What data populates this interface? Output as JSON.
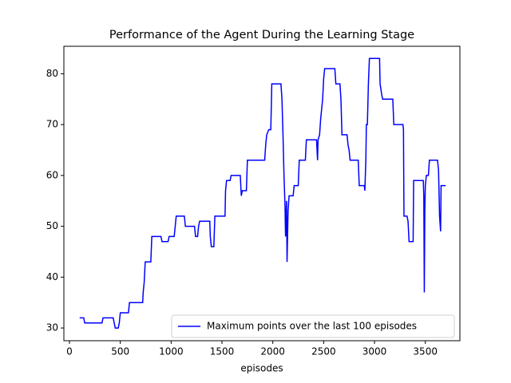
{
  "chart_data": {
    "type": "line",
    "title": "Performance of the Agent During the Learning Stage",
    "xlabel": "episodes",
    "x": [
      100,
      140,
      150,
      320,
      330,
      430,
      440,
      450,
      480,
      490,
      500,
      580,
      590,
      720,
      725,
      735,
      745,
      800,
      810,
      900,
      910,
      970,
      980,
      1030,
      1040,
      1050,
      1130,
      1140,
      1230,
      1240,
      1260,
      1270,
      1280,
      1380,
      1385,
      1395,
      1420,
      1430,
      1530,
      1535,
      1545,
      1580,
      1590,
      1680,
      1690,
      1700,
      1740,
      1750,
      1920,
      1930,
      1940,
      1960,
      1980,
      1990,
      2080,
      2090,
      2100,
      2110,
      2120,
      2125,
      2135,
      2140,
      2150,
      2160,
      2200,
      2210,
      2250,
      2260,
      2320,
      2330,
      2430,
      2440,
      2445,
      2460,
      2470,
      2480,
      2490,
      2500,
      2510,
      2610,
      2620,
      2660,
      2670,
      2680,
      2730,
      2740,
      2750,
      2760,
      2840,
      2850,
      2900,
      2905,
      2915,
      2920,
      2930,
      2940,
      2950,
      3050,
      3055,
      3070,
      3080,
      3180,
      3190,
      3280,
      3285,
      3290,
      3320,
      3330,
      3340,
      3380,
      3385,
      3480,
      3485,
      3490,
      3495,
      3500,
      3510,
      3530,
      3540,
      3620,
      3630,
      3640,
      3650,
      3655,
      3700
    ],
    "series": [
      {
        "name": "Maximum points over the last 100 episodes",
        "color": "#0000ff",
        "values": [
          32,
          32,
          31,
          31,
          32,
          32,
          31,
          30,
          30,
          31,
          33,
          33,
          35,
          35,
          37,
          39,
          43,
          43,
          48,
          48,
          47,
          47,
          48,
          48,
          50,
          52,
          52,
          50,
          50,
          48,
          48,
          50,
          51,
          51,
          48,
          46,
          46,
          52,
          52,
          57,
          59,
          59,
          60,
          60,
          56,
          57,
          57,
          63,
          63,
          66,
          68,
          69,
          69,
          78,
          78,
          75,
          68,
          60,
          54,
          48,
          55,
          43,
          53,
          56,
          56,
          58,
          58,
          63,
          63,
          67,
          67,
          63,
          67,
          68,
          71,
          73,
          75,
          79,
          81,
          81,
          78,
          78,
          75,
          68,
          68,
          66,
          65,
          63,
          63,
          58,
          58,
          57,
          63,
          70,
          70,
          78,
          83,
          83,
          78,
          76,
          75,
          75,
          70,
          70,
          69,
          52,
          52,
          51,
          47,
          47,
          59,
          59,
          56,
          37,
          53,
          58,
          60,
          60,
          63,
          63,
          61,
          52,
          49,
          58,
          58
        ]
      }
    ],
    "xlim": [
      -55,
      3840
    ],
    "ylim": [
      27.5,
      85.4
    ],
    "xticks": [
      0,
      500,
      1000,
      1500,
      2000,
      2500,
      3000,
      3500
    ],
    "yticks": [
      30,
      40,
      50,
      60,
      70,
      80
    ],
    "grid": false,
    "legend": "lower right"
  }
}
